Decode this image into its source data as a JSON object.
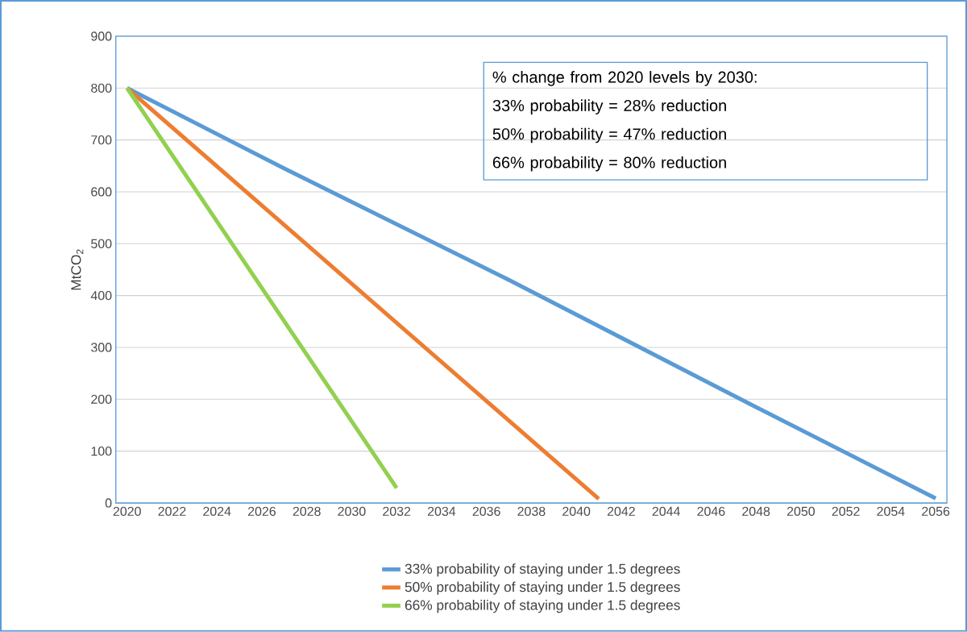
{
  "chart_data": {
    "type": "line",
    "ylabel": "MtCO$_{2}$",
    "xlim": [
      2019.5,
      2056.5
    ],
    "ylim": [
      0,
      900
    ],
    "xticks": [
      2020,
      2022,
      2024,
      2026,
      2028,
      2030,
      2032,
      2034,
      2036,
      2038,
      2040,
      2042,
      2044,
      2046,
      2048,
      2050,
      2052,
      2054,
      2056
    ],
    "yticks": [
      0,
      100,
      200,
      300,
      400,
      500,
      600,
      700,
      800,
      900
    ],
    "grid": "y",
    "legend": "bottom",
    "marker": "none",
    "line_style": "solid",
    "annotations": [
      "% change from 2020 levels by 2030:",
      "33% probability = 28% reduction",
      "50% probability = 47% reduction",
      "66% probability = 80% reduction"
    ],
    "series": [
      {
        "name": "33% probability of staying under 1.5 degrees",
        "color": "#5b9bd5",
        "x": [
          2020,
          2027,
          2037,
          2048,
          2056
        ],
        "values": [
          800,
          645,
          430,
          185,
          9
        ]
      },
      {
        "name": "50% probability of staying under 1.5 degrees",
        "color": "#ed7d31",
        "x": [
          2020,
          2041
        ],
        "values": [
          800,
          8
        ]
      },
      {
        "name": "66% probability of staying under 1.5 degrees",
        "color": "#92d050",
        "x": [
          2020,
          2032
        ],
        "values": [
          800,
          29
        ]
      }
    ]
  }
}
